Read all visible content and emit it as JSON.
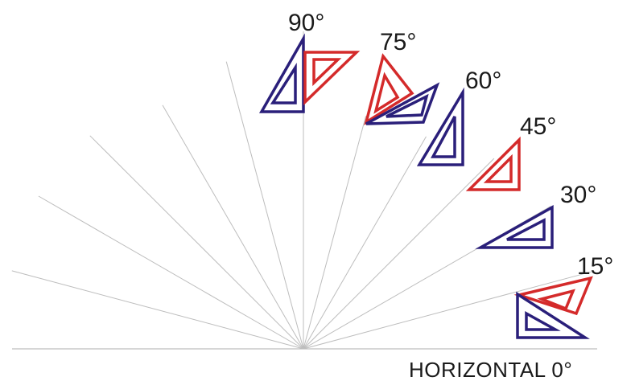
{
  "diagram": {
    "baseline_label": "HORIZONTAL 0°",
    "lines": [
      {
        "angle_deg": 90,
        "label": "90°"
      },
      {
        "angle_deg": 75,
        "label": "75°"
      },
      {
        "angle_deg": 60,
        "label": "60°"
      },
      {
        "angle_deg": 45,
        "label": "45°"
      },
      {
        "angle_deg": 30,
        "label": "30°"
      },
      {
        "angle_deg": 15,
        "label": "15°"
      },
      {
        "angle_deg": 105,
        "label": ""
      },
      {
        "angle_deg": 120,
        "label": ""
      },
      {
        "angle_deg": 135,
        "label": ""
      },
      {
        "angle_deg": 150,
        "label": ""
      },
      {
        "angle_deg": 165,
        "label": ""
      }
    ],
    "set_squares": [
      {
        "name": "set-square-90-left",
        "color": "#2a1f7a"
      },
      {
        "name": "set-square-90-right",
        "color": "#d42a2a"
      },
      {
        "name": "set-square-75",
        "color": "#d42a2a"
      },
      {
        "name": "set-square-75-60-shared",
        "color": "#2a1f7a"
      },
      {
        "name": "set-square-60",
        "color": "#2a1f7a"
      },
      {
        "name": "set-square-45",
        "color": "#d42a2a"
      },
      {
        "name": "set-square-30",
        "color": "#2a1f7a"
      },
      {
        "name": "set-square-15-upper",
        "color": "#d42a2a"
      },
      {
        "name": "set-square-15-lower",
        "color": "#2a1f7a"
      }
    ],
    "colors": {
      "line": "#bdbdbd",
      "text": "#1a1a1a",
      "blue": "#2a1f7a",
      "red": "#d42a2a"
    }
  }
}
